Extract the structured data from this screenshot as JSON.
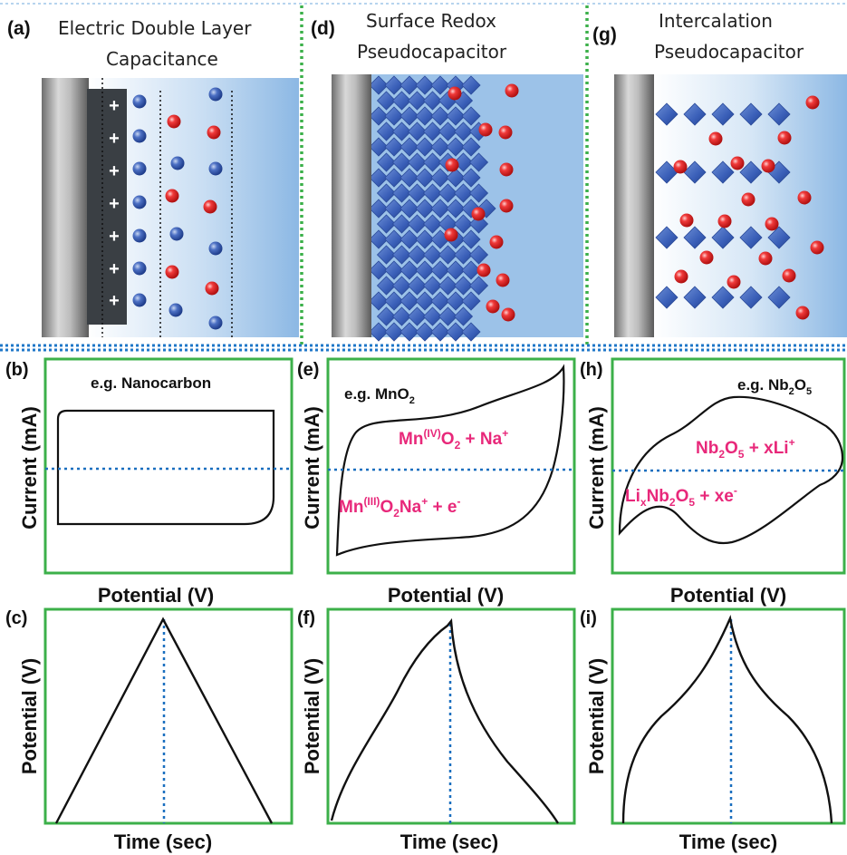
{
  "panels": {
    "a": {
      "letter": "(a)",
      "title_line1": "Electric Double Layer",
      "title_line2": "Capacitance"
    },
    "d": {
      "letter": "(d)",
      "title_line1": "Surface Redox",
      "title_line2": "Pseudocapacitor"
    },
    "g": {
      "letter": "(g)",
      "title_line1": "Intercalation",
      "title_line2": "Pseudocapacitor"
    },
    "b": {
      "letter": "(b)",
      "example": "e.g. Nanocarbon"
    },
    "e": {
      "letter": "(e)",
      "example_prefix": "e.g. MnO",
      "example_sub": "2",
      "reaction1": {
        "p1": "Mn",
        "sup1": "(IV)",
        "p2": "O",
        "sub2": "2",
        "p3": " + Na",
        "sup3": "+"
      },
      "reaction2": {
        "p1": "Mn",
        "sup1": "(III)",
        "p2": "O",
        "sub2": "2",
        "p3": "Na",
        "sup3": "+",
        "p4": " + e",
        "sup4": "-"
      }
    },
    "h": {
      "letter": "(h)",
      "example_prefix": "e.g. Nb",
      "example_sub1": "2",
      "example_mid": "O",
      "example_sub2": "5",
      "reaction1": {
        "p1": "Nb",
        "sub1": "2",
        "p2": "O",
        "sub2": "5",
        "p3": " + xLi",
        "sup3": "+"
      },
      "reaction2": {
        "p1": "Li",
        "sub1": "x",
        "p2": "Nb",
        "sub2": "2",
        "p3": "O",
        "sub3": "5",
        "p4": " + xe",
        "sup4": "-"
      }
    },
    "c": {
      "letter": "(c)"
    },
    "f": {
      "letter": "(f)"
    },
    "i": {
      "letter": "(i)"
    }
  },
  "axes": {
    "current": "Current (mA)",
    "potential_y": "Potential (V)",
    "potential_x": "Potential (V)",
    "time": "Time (sec)"
  },
  "symbols": {
    "plus": "+"
  },
  "colors": {
    "frame_green": "#3cb04a",
    "divider_blue": "#1f77c8",
    "guide_blue": "#1a6fbf",
    "electrolyte_blue": "#92bde6",
    "cation_red": "#e8232a",
    "anion_blue": "#3a5fb8",
    "reaction_pink": "#e8287a"
  }
}
